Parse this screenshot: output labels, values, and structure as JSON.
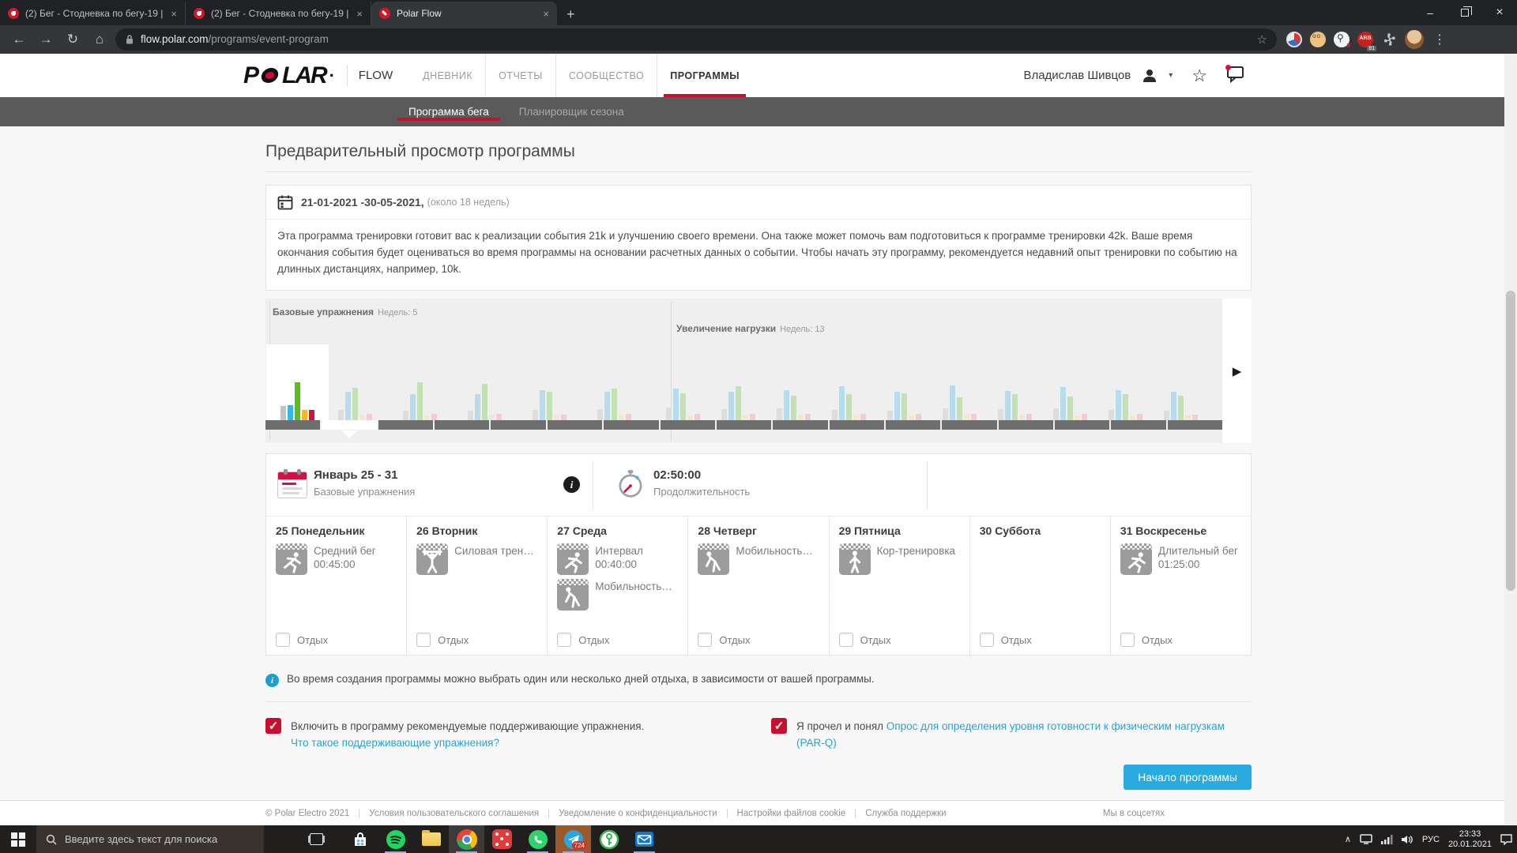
{
  "browser": {
    "tabs": [
      {
        "title": "(2) Бег - Стодневка по бегу-19 |",
        "active": false
      },
      {
        "title": "(2) Бег - Стодневка по бегу-19 |",
        "active": false
      },
      {
        "title": "Polar Flow",
        "active": true
      }
    ],
    "url_domain": "flow.polar.com",
    "url_path": "/programs/event-program",
    "ext_badge_label": "ARB",
    "ext_badge_count": "81"
  },
  "icons": {
    "back": "←",
    "forward": "→",
    "reload": "↻",
    "home": "⌂",
    "star": "☆",
    "menu": "⋮",
    "close": "×",
    "new_tab": "+",
    "minimize": "–",
    "caret": "▾",
    "arrow_right": "▶",
    "info": "i",
    "check": "✓",
    "tray_chevron": "∧"
  },
  "header": {
    "logo_p": "P",
    "logo_rest": "LAR",
    "logo_dot": ".",
    "flow_label": "FLOW",
    "nav": [
      {
        "label": "ДНЕВНИК",
        "active": false
      },
      {
        "label": "ОТЧЕТЫ",
        "active": false
      },
      {
        "label": "СООБЩЕСТВО",
        "active": false
      },
      {
        "label": "ПРОГРАММЫ",
        "active": true
      }
    ],
    "user": "Владислав Шивцов"
  },
  "subnav": {
    "items": [
      {
        "label": "Программа бега",
        "active": true
      },
      {
        "label": "Планировщик сезона",
        "active": false
      }
    ]
  },
  "page": {
    "title": "Предварительный просмотр программы",
    "date_range": "21-01-2021 -30-05-2021,",
    "date_note": "(около 18 недель)",
    "description": "Эта программа тренировки готовит вас к реализации события 21k и улучшению своего времени. Она также может помочь вам подготовиться к программе тренировки 42k. Ваше время окончания события будет оцениваться во время программы на основании расчетных данных о событии. Чтобы начать эту программу, рекомендуется недавний опыт тренировки по событию на длинных дистанциях, например, 10k."
  },
  "chart_data": {
    "type": "bar",
    "phases": [
      {
        "label": "Базовые упражнения",
        "weeks_label": "Недель: 5"
      },
      {
        "label": "Увеличение нагрузки",
        "weeks_label": "Недель: 13"
      }
    ],
    "bar_series_order": [
      "grey",
      "blue",
      "green",
      "yellow",
      "red"
    ],
    "colors_selected": [
      "#c2c2c2",
      "#31b7e9",
      "#5abe1e",
      "#f2b825",
      "#d31145"
    ],
    "colors_muted": [
      "#dddddd",
      "#b6dcee",
      "#c3e2b4",
      "#f3e8c8",
      "#f1ccd7"
    ],
    "selected_week_bars": [
      18,
      19,
      48,
      13,
      13
    ],
    "weeks_muted_bars": [
      [
        13,
        36,
        41,
        6,
        8
      ],
      [
        12,
        33,
        48,
        6,
        8
      ],
      [
        12,
        33,
        46,
        7,
        8
      ],
      [
        13,
        38,
        36,
        6,
        7
      ],
      [
        14,
        36,
        40,
        6,
        8
      ],
      [
        16,
        40,
        34,
        6,
        8
      ],
      [
        14,
        36,
        43,
        6,
        8
      ],
      [
        15,
        38,
        31,
        7,
        8
      ],
      [
        13,
        43,
        33,
        7,
        8
      ],
      [
        12,
        36,
        34,
        6,
        8
      ],
      [
        15,
        44,
        29,
        7,
        8
      ],
      [
        14,
        37,
        33,
        7,
        8
      ],
      [
        15,
        42,
        30,
        6,
        8
      ],
      [
        13,
        38,
        33,
        6,
        8
      ],
      [
        12,
        36,
        31,
        6,
        7
      ]
    ],
    "timeline_segments": 17,
    "timeline_selected_index": 1
  },
  "week_panel": {
    "title": "Январь 25 - 31",
    "subtitle": "Базовые упражнения",
    "duration": "02:50:00",
    "duration_label": "Продолжительность"
  },
  "days": [
    {
      "title": "25 Понедельник",
      "rest": "Отдых",
      "workouts": [
        {
          "icon": "run",
          "name": "Средний бег",
          "time": "00:45:00"
        }
      ]
    },
    {
      "title": "26 Вторник",
      "rest": "Отдых",
      "workouts": [
        {
          "icon": "strength",
          "name": "Силовая трен…",
          "time": ""
        }
      ]
    },
    {
      "title": "27 Среда",
      "rest": "Отдых",
      "workouts": [
        {
          "icon": "run",
          "name": "Интервал",
          "time": "00:40:00"
        },
        {
          "icon": "mobility",
          "name": "Мобильность…",
          "time": ""
        }
      ]
    },
    {
      "title": "28 Четверг",
      "rest": "Отдых",
      "workouts": [
        {
          "icon": "mobility",
          "name": "Мобильность…",
          "time": ""
        }
      ]
    },
    {
      "title": "29 Пятница",
      "rest": "Отдых",
      "workouts": [
        {
          "icon": "core",
          "name": "Кор-тренировка",
          "time": ""
        }
      ]
    },
    {
      "title": "30 Суббота",
      "rest": "Отдых",
      "workouts": []
    },
    {
      "title": "31 Воскресенье",
      "rest": "Отдых",
      "workouts": [
        {
          "icon": "run",
          "name": "Длительный бег",
          "time": "01:25:00"
        }
      ]
    }
  ],
  "note": {
    "text": "Во время создания программы можно выбрать один или несколько дней отдыха, в зависимости от вашей программы."
  },
  "consents": {
    "left_text": "Включить в программу рекомендуемые поддерживающие упражнения.",
    "left_link": "Что такое поддерживающие упражнения?",
    "right_text": "Я прочел и понял",
    "right_link": "Опрос для определения уровня готовности к физическим нагрузкам (PAR-Q)"
  },
  "start_button": {
    "label": "Начало программы"
  },
  "footer": {
    "copyright": "© Polar Electro 2021",
    "links": [
      "Условия пользовательского соглашения",
      "Уведомление о конфиденциальности",
      "Настройки файлов cookie",
      "Служба поддержки"
    ],
    "social": "Мы в соцсетях"
  },
  "taskbar": {
    "search_placeholder": "Введите здесь текст для поиска",
    "lang": "РУС",
    "time": "23:33",
    "date": "20.01.2021",
    "telegram_badge": "724"
  }
}
